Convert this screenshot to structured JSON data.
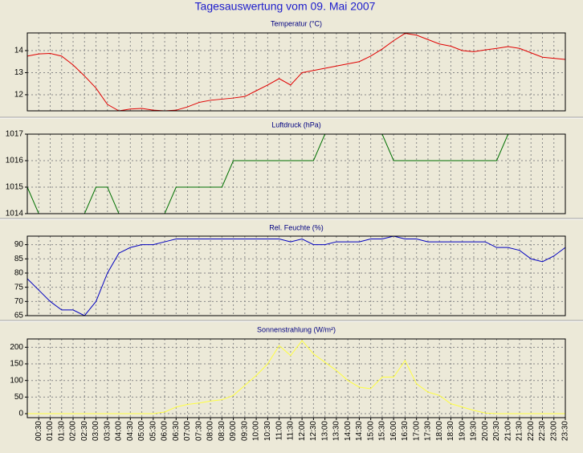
{
  "title": "Tagesauswertung vom 09. Mai 2007",
  "chart_data": [
    {
      "type": "line",
      "title": "Temperatur (°C)",
      "color": "#e00000",
      "grid": true,
      "ylim": [
        11.27,
        14.8
      ],
      "yticks": [
        12,
        13,
        14
      ],
      "values": [
        13.75,
        13.85,
        13.87,
        13.75,
        13.35,
        12.85,
        12.3,
        11.56,
        11.27,
        11.35,
        11.38,
        11.3,
        11.27,
        11.3,
        11.45,
        11.65,
        11.75,
        11.8,
        11.85,
        11.92,
        12.18,
        12.44,
        12.73,
        12.44,
        13.0,
        13.1,
        13.2,
        13.3,
        13.4,
        13.5,
        13.75,
        14.07,
        14.45,
        14.78,
        14.7,
        14.5,
        14.3,
        14.2,
        14.0,
        13.95,
        14.03,
        14.1,
        14.18,
        14.1,
        13.9,
        13.7,
        13.65,
        13.6
      ]
    },
    {
      "type": "line",
      "title": "Luftdruck (hPa)",
      "color": "#007000",
      "grid": true,
      "ylim": [
        1014,
        1017
      ],
      "yticks": [
        1014,
        1015,
        1016,
        1017
      ],
      "values": [
        1015,
        1014,
        1014,
        1014,
        1014,
        1014,
        1015,
        1015,
        1014,
        1014,
        1014,
        1014,
        1014,
        1015,
        1015,
        1015,
        1015,
        1015,
        1016,
        1016,
        1016,
        1016,
        1016,
        1016,
        1016,
        1016,
        1017,
        1017,
        1017,
        1017,
        1017,
        1017,
        1016,
        1016,
        1016,
        1016,
        1016,
        1016,
        1016,
        1016,
        1016,
        1016,
        1017,
        1017,
        1017,
        1017,
        1017,
        1017
      ]
    },
    {
      "type": "line",
      "title": "Rel. Feuchte (%)",
      "color": "#0000c0",
      "grid": true,
      "ylim": [
        65,
        93
      ],
      "yticks": [
        65,
        70,
        75,
        80,
        85,
        90
      ],
      "values": [
        78,
        74,
        70,
        67,
        67,
        65,
        70,
        80,
        87,
        89,
        90,
        90,
        91,
        92,
        92,
        92,
        92,
        92,
        92,
        92,
        92,
        92,
        92,
        91,
        92,
        90,
        90,
        91,
        91,
        91,
        92,
        92,
        93,
        92,
        92,
        91,
        91,
        91,
        91,
        91,
        91,
        89,
        89,
        88,
        85,
        84,
        86,
        89
      ]
    },
    {
      "type": "line",
      "title": "Sonnenstrahlung (W/m²)",
      "color": "#ffff40",
      "grid": true,
      "ylim": [
        -12,
        225
      ],
      "yticks": [
        0,
        50,
        100,
        150,
        200
      ],
      "categories": [
        null,
        "00:30",
        "01:00",
        "01:30",
        "02:00",
        "02:30",
        "03:00",
        "03:30",
        "04:00",
        "04:30",
        "05:00",
        "05:30",
        "06:00",
        "06:30",
        "07:00",
        "07:30",
        "08:00",
        "08:30",
        "09:00",
        "09:30",
        "10:00",
        "10:30",
        "11:00",
        "11:30",
        "12:00",
        "12:30",
        "13:00",
        "13:30",
        "14:00",
        "14:30",
        "15:00",
        "15:30",
        "16:00",
        "16:30",
        "17:00",
        "17:30",
        "18:00",
        "18:30",
        "19:00",
        "19:30",
        "20:00",
        "20:30",
        "21:00",
        "21:30",
        "22:00",
        "22:30",
        "23:00",
        "23:30"
      ],
      "values": [
        0,
        0,
        0,
        0,
        0,
        0,
        0,
        0,
        0,
        0,
        0,
        0,
        5,
        20,
        28,
        32,
        38,
        42,
        55,
        85,
        115,
        150,
        205,
        175,
        220,
        180,
        155,
        130,
        100,
        80,
        75,
        110,
        110,
        160,
        90,
        65,
        55,
        30,
        20,
        10,
        2,
        0,
        0,
        0,
        0,
        0,
        0,
        0
      ]
    }
  ]
}
